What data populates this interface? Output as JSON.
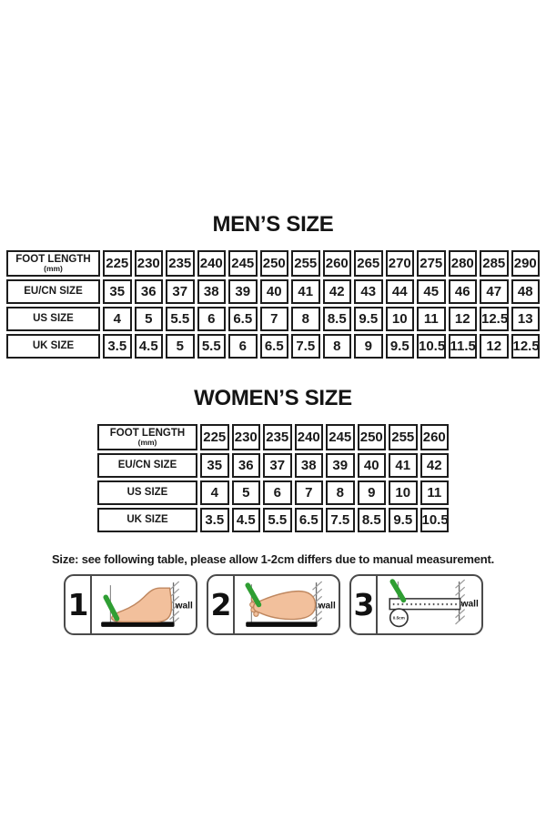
{
  "mens": {
    "title": "MEN’S SIZE",
    "rows": [
      {
        "label": "FOOT LENGTH",
        "sublabel": "(mm)",
        "values": [
          "225",
          "230",
          "235",
          "240",
          "245",
          "250",
          "255",
          "260",
          "265",
          "270",
          "275",
          "280",
          "285",
          "290"
        ]
      },
      {
        "label": "EU/CN SIZE",
        "values": [
          "35",
          "36",
          "37",
          "38",
          "39",
          "40",
          "41",
          "42",
          "43",
          "44",
          "45",
          "46",
          "47",
          "48"
        ]
      },
      {
        "label": "US SIZE",
        "values": [
          "4",
          "5",
          "5.5",
          "6",
          "6.5",
          "7",
          "8",
          "8.5",
          "9.5",
          "10",
          "11",
          "12",
          "12.5",
          "13"
        ]
      },
      {
        "label": "UK SIZE",
        "values": [
          "3.5",
          "4.5",
          "5",
          "5.5",
          "6",
          "6.5",
          "7.5",
          "8",
          "9",
          "9.5",
          "10.5",
          "11.5",
          "12",
          "12.5"
        ]
      }
    ]
  },
  "womens": {
    "title": "WOMEN’S SIZE",
    "rows": [
      {
        "label": "FOOT LENGTH",
        "sublabel": "(mm)",
        "values": [
          "225",
          "230",
          "235",
          "240",
          "245",
          "250",
          "255",
          "260"
        ]
      },
      {
        "label": "EU/CN SIZE",
        "values": [
          "35",
          "36",
          "37",
          "38",
          "39",
          "40",
          "41",
          "42"
        ]
      },
      {
        "label": "US SIZE",
        "values": [
          "4",
          "5",
          "6",
          "7",
          "8",
          "9",
          "10",
          "11"
        ]
      },
      {
        "label": "UK SIZE",
        "values": [
          "3.5",
          "4.5",
          "5.5",
          "6.5",
          "7.5",
          "8.5",
          "9.5",
          "10.5"
        ]
      }
    ]
  },
  "note": "Size: see following table, please allow 1-2cm differs due to manual measurement.",
  "steps": {
    "items": [
      {
        "number": "1",
        "wall_label": "wall"
      },
      {
        "number": "2",
        "wall_label": "wall"
      },
      {
        "number": "3",
        "wall_label": "wall",
        "magnifier_label": "0.5cm"
      }
    ]
  },
  "colors": {
    "text": "#1a1a1a",
    "table_border": "#1c1c1c",
    "panel_border": "#4a4a4a",
    "check_green": "#2f9e33",
    "foot_skin": "#f2c09c",
    "foot_outline": "#bf875f",
    "wall_hatch": "#999999",
    "background": "#ffffff"
  }
}
